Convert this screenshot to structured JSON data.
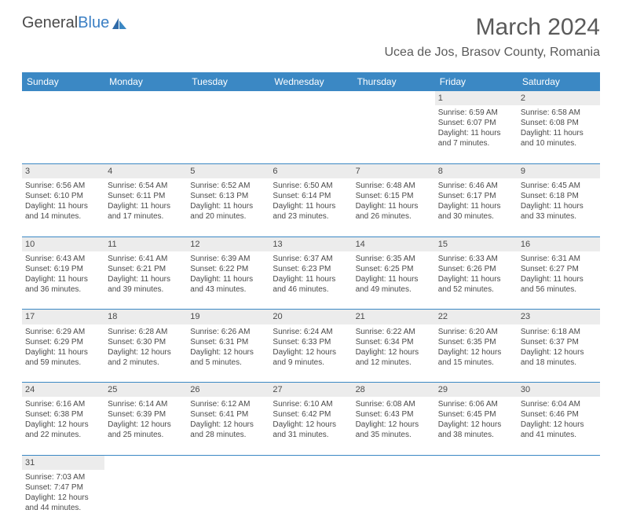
{
  "logo": {
    "general": "General",
    "blue": "Blue"
  },
  "title": "March 2024",
  "location": "Ucea de Jos, Brasov County, Romania",
  "colors": {
    "header_bg": "#3b88c4",
    "header_text": "#ffffff",
    "daynum_bg": "#ececec",
    "text": "#4a4a4a",
    "border": "#3b88c4",
    "logo_blue": "#3b7fc4"
  },
  "weekdays": [
    "Sunday",
    "Monday",
    "Tuesday",
    "Wednesday",
    "Thursday",
    "Friday",
    "Saturday"
  ],
  "weeks": [
    [
      null,
      null,
      null,
      null,
      null,
      {
        "n": "1",
        "sunrise": "Sunrise: 6:59 AM",
        "sunset": "Sunset: 6:07 PM",
        "daylight": "Daylight: 11 hours and 7 minutes."
      },
      {
        "n": "2",
        "sunrise": "Sunrise: 6:58 AM",
        "sunset": "Sunset: 6:08 PM",
        "daylight": "Daylight: 11 hours and 10 minutes."
      }
    ],
    [
      {
        "n": "3",
        "sunrise": "Sunrise: 6:56 AM",
        "sunset": "Sunset: 6:10 PM",
        "daylight": "Daylight: 11 hours and 14 minutes."
      },
      {
        "n": "4",
        "sunrise": "Sunrise: 6:54 AM",
        "sunset": "Sunset: 6:11 PM",
        "daylight": "Daylight: 11 hours and 17 minutes."
      },
      {
        "n": "5",
        "sunrise": "Sunrise: 6:52 AM",
        "sunset": "Sunset: 6:13 PM",
        "daylight": "Daylight: 11 hours and 20 minutes."
      },
      {
        "n": "6",
        "sunrise": "Sunrise: 6:50 AM",
        "sunset": "Sunset: 6:14 PM",
        "daylight": "Daylight: 11 hours and 23 minutes."
      },
      {
        "n": "7",
        "sunrise": "Sunrise: 6:48 AM",
        "sunset": "Sunset: 6:15 PM",
        "daylight": "Daylight: 11 hours and 26 minutes."
      },
      {
        "n": "8",
        "sunrise": "Sunrise: 6:46 AM",
        "sunset": "Sunset: 6:17 PM",
        "daylight": "Daylight: 11 hours and 30 minutes."
      },
      {
        "n": "9",
        "sunrise": "Sunrise: 6:45 AM",
        "sunset": "Sunset: 6:18 PM",
        "daylight": "Daylight: 11 hours and 33 minutes."
      }
    ],
    [
      {
        "n": "10",
        "sunrise": "Sunrise: 6:43 AM",
        "sunset": "Sunset: 6:19 PM",
        "daylight": "Daylight: 11 hours and 36 minutes."
      },
      {
        "n": "11",
        "sunrise": "Sunrise: 6:41 AM",
        "sunset": "Sunset: 6:21 PM",
        "daylight": "Daylight: 11 hours and 39 minutes."
      },
      {
        "n": "12",
        "sunrise": "Sunrise: 6:39 AM",
        "sunset": "Sunset: 6:22 PM",
        "daylight": "Daylight: 11 hours and 43 minutes."
      },
      {
        "n": "13",
        "sunrise": "Sunrise: 6:37 AM",
        "sunset": "Sunset: 6:23 PM",
        "daylight": "Daylight: 11 hours and 46 minutes."
      },
      {
        "n": "14",
        "sunrise": "Sunrise: 6:35 AM",
        "sunset": "Sunset: 6:25 PM",
        "daylight": "Daylight: 11 hours and 49 minutes."
      },
      {
        "n": "15",
        "sunrise": "Sunrise: 6:33 AM",
        "sunset": "Sunset: 6:26 PM",
        "daylight": "Daylight: 11 hours and 52 minutes."
      },
      {
        "n": "16",
        "sunrise": "Sunrise: 6:31 AM",
        "sunset": "Sunset: 6:27 PM",
        "daylight": "Daylight: 11 hours and 56 minutes."
      }
    ],
    [
      {
        "n": "17",
        "sunrise": "Sunrise: 6:29 AM",
        "sunset": "Sunset: 6:29 PM",
        "daylight": "Daylight: 11 hours and 59 minutes."
      },
      {
        "n": "18",
        "sunrise": "Sunrise: 6:28 AM",
        "sunset": "Sunset: 6:30 PM",
        "daylight": "Daylight: 12 hours and 2 minutes."
      },
      {
        "n": "19",
        "sunrise": "Sunrise: 6:26 AM",
        "sunset": "Sunset: 6:31 PM",
        "daylight": "Daylight: 12 hours and 5 minutes."
      },
      {
        "n": "20",
        "sunrise": "Sunrise: 6:24 AM",
        "sunset": "Sunset: 6:33 PM",
        "daylight": "Daylight: 12 hours and 9 minutes."
      },
      {
        "n": "21",
        "sunrise": "Sunrise: 6:22 AM",
        "sunset": "Sunset: 6:34 PM",
        "daylight": "Daylight: 12 hours and 12 minutes."
      },
      {
        "n": "22",
        "sunrise": "Sunrise: 6:20 AM",
        "sunset": "Sunset: 6:35 PM",
        "daylight": "Daylight: 12 hours and 15 minutes."
      },
      {
        "n": "23",
        "sunrise": "Sunrise: 6:18 AM",
        "sunset": "Sunset: 6:37 PM",
        "daylight": "Daylight: 12 hours and 18 minutes."
      }
    ],
    [
      {
        "n": "24",
        "sunrise": "Sunrise: 6:16 AM",
        "sunset": "Sunset: 6:38 PM",
        "daylight": "Daylight: 12 hours and 22 minutes."
      },
      {
        "n": "25",
        "sunrise": "Sunrise: 6:14 AM",
        "sunset": "Sunset: 6:39 PM",
        "daylight": "Daylight: 12 hours and 25 minutes."
      },
      {
        "n": "26",
        "sunrise": "Sunrise: 6:12 AM",
        "sunset": "Sunset: 6:41 PM",
        "daylight": "Daylight: 12 hours and 28 minutes."
      },
      {
        "n": "27",
        "sunrise": "Sunrise: 6:10 AM",
        "sunset": "Sunset: 6:42 PM",
        "daylight": "Daylight: 12 hours and 31 minutes."
      },
      {
        "n": "28",
        "sunrise": "Sunrise: 6:08 AM",
        "sunset": "Sunset: 6:43 PM",
        "daylight": "Daylight: 12 hours and 35 minutes."
      },
      {
        "n": "29",
        "sunrise": "Sunrise: 6:06 AM",
        "sunset": "Sunset: 6:45 PM",
        "daylight": "Daylight: 12 hours and 38 minutes."
      },
      {
        "n": "30",
        "sunrise": "Sunrise: 6:04 AM",
        "sunset": "Sunset: 6:46 PM",
        "daylight": "Daylight: 12 hours and 41 minutes."
      }
    ],
    [
      {
        "n": "31",
        "sunrise": "Sunrise: 7:03 AM",
        "sunset": "Sunset: 7:47 PM",
        "daylight": "Daylight: 12 hours and 44 minutes."
      },
      null,
      null,
      null,
      null,
      null,
      null
    ]
  ]
}
